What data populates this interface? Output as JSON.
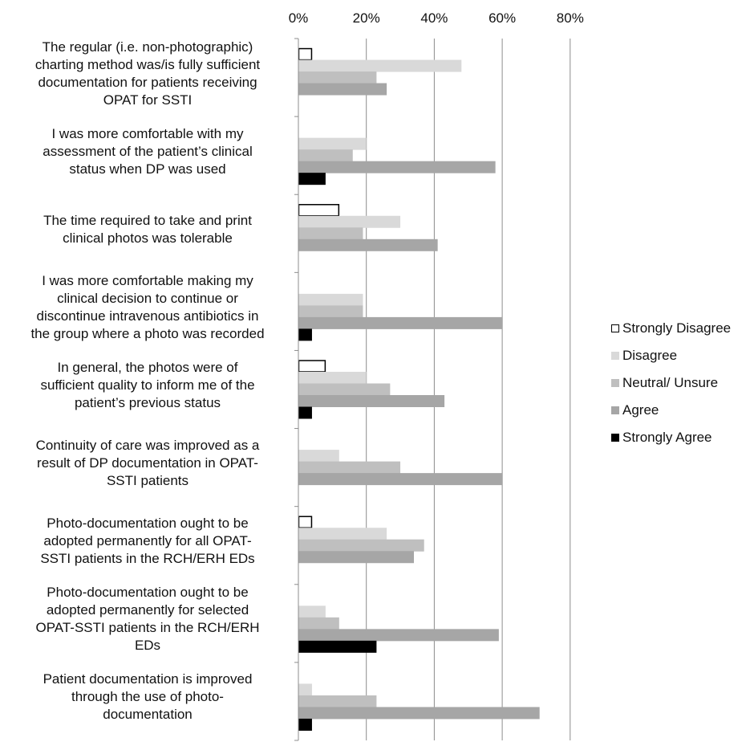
{
  "chart_data": {
    "type": "bar",
    "orientation": "horizontal",
    "title": "",
    "xlabel": "",
    "ylabel": "",
    "xlim": [
      0,
      80
    ],
    "x_ticks": [
      "0%",
      "20%",
      "40%",
      "60%",
      "80%"
    ],
    "x_axis_position": "top",
    "grid": "vertical",
    "legend_position": "right",
    "categories": [
      "The regular (i.e. non-photographic) charting method was/is fully sufficient documentation for patients receiving OPAT for SSTI",
      "I was more comfortable with my assessment of the patient’s clinical status when DP was used",
      "The time required to take and print clinical photos was tolerable",
      "I was more comfortable making my clinical decision to continue or discontinue intravenous antibiotics in the group where a photo was recorded",
      "In general, the photos were of sufficient quality to inform me of the patient’s previous status",
      "Continuity of care was improved as a result of DP documentation in OPAT-SSTI patients",
      "Photo-documentation ought to be adopted permanently for all OPAT-SSTI patients in the RCH/ERH EDs",
      "Photo-documentation ought to be adopted permanently for selected OPAT-SSTI patients in the RCH/ERH EDs",
      "Patient documentation is improved through the use of photo-documentation"
    ],
    "category_lines": [
      [
        "The regular (i.e. non-photographic)",
        "charting method was/is fully sufficient",
        "documentation for patients receiving",
        "OPAT for SSTI"
      ],
      [
        "I was more comfortable with my",
        "assessment of the patient’s clinical",
        "status when DP was used"
      ],
      [
        "The time required to take and print",
        "clinical photos was tolerable"
      ],
      [
        "I was more comfortable making my",
        "clinical decision to continue or",
        "discontinue intravenous antibiotics in",
        "the group where a photo was recorded"
      ],
      [
        "In general, the photos were of",
        "sufficient quality to inform me of the",
        "patient’s previous status"
      ],
      [
        "Continuity of care was improved as a",
        "result of DP documentation in OPAT-",
        "SSTI patients"
      ],
      [
        "Photo-documentation ought to be",
        "adopted permanently for all OPAT-",
        "SSTI patients in the RCH/ERH EDs"
      ],
      [
        "Photo-documentation ought to be",
        "adopted permanently for selected",
        "OPAT-SSTI patients in the RCH/ERH",
        "EDs"
      ],
      [
        "Patient documentation is improved",
        "through the use of photo-",
        "documentation"
      ]
    ],
    "series": [
      {
        "name": "Strongly Disagree",
        "color": "#ffffff",
        "stroke": "#000000",
        "values": [
          4,
          0,
          12,
          0,
          8,
          0,
          4,
          0,
          0
        ]
      },
      {
        "name": "Disagree",
        "color": "#d9d9d9",
        "stroke": "none",
        "values": [
          48,
          20,
          30,
          19,
          20,
          12,
          26,
          8,
          4
        ]
      },
      {
        "name": "Neutral/ Unsure",
        "color": "#bfbfbf",
        "stroke": "none",
        "values": [
          23,
          16,
          19,
          19,
          27,
          30,
          37,
          12,
          23
        ]
      },
      {
        "name": "Agree",
        "color": "#a6a6a6",
        "stroke": "none",
        "values": [
          26,
          58,
          41,
          60,
          43,
          60,
          34,
          59,
          71
        ]
      },
      {
        "name": "Strongly Agree",
        "color": "#000000",
        "stroke": "none",
        "values": [
          0,
          8,
          0,
          4,
          4,
          0,
          0,
          23,
          4
        ]
      }
    ]
  }
}
